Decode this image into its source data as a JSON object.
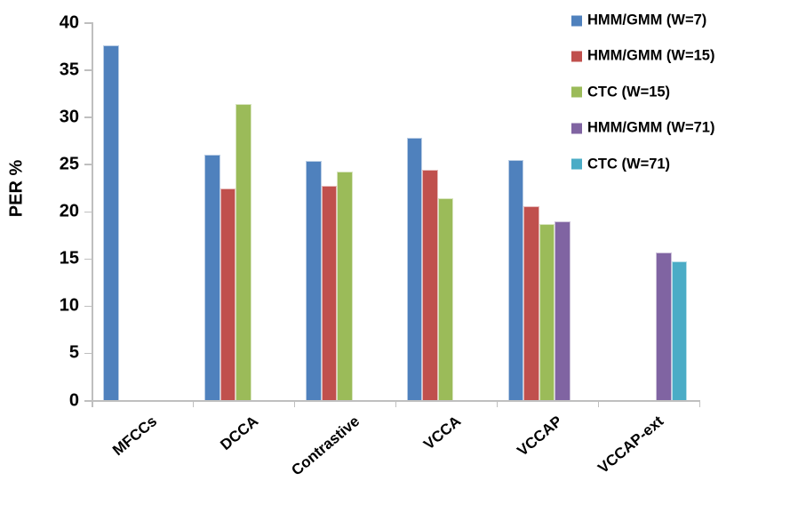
{
  "chart_data": {
    "type": "bar",
    "title": "",
    "xlabel": "",
    "ylabel": "PER %",
    "ylim": [
      0,
      40
    ],
    "yticks": [
      0,
      5,
      10,
      15,
      20,
      25,
      30,
      35,
      40
    ],
    "grid": false,
    "legend_position": "top-right",
    "axis_color": "#BFBFBF",
    "text_color": "#000000",
    "categories": [
      "MFCCs",
      "DCCA",
      "Contrastive",
      "VCCA",
      "VCCAP",
      "VCCAP-ext"
    ],
    "series": [
      {
        "name": "HMM/GMM (W=7)",
        "color": "#4F81BD",
        "border": "#B8CCE4",
        "values": [
          37.6,
          26.0,
          25.3,
          27.8,
          25.4,
          null
        ]
      },
      {
        "name": "HMM/GMM (W=15)",
        "color": "#C0504D",
        "border": "#E6B9B8",
        "values": [
          null,
          22.4,
          22.7,
          24.4,
          20.5,
          null
        ]
      },
      {
        "name": "CTC (W=15)",
        "color": "#9BBB59",
        "border": "#D7E4BD",
        "values": [
          null,
          31.3,
          24.2,
          21.4,
          18.6,
          null
        ]
      },
      {
        "name": "HMM/GMM (W=71)",
        "color": "#8064A2",
        "border": "#CCC1D9",
        "values": [
          null,
          null,
          null,
          null,
          18.9,
          15.6
        ]
      },
      {
        "name": "CTC (W=71)",
        "color": "#4BACC6",
        "border": "#B7DEE8",
        "values": [
          null,
          null,
          null,
          null,
          null,
          14.7
        ]
      }
    ]
  }
}
